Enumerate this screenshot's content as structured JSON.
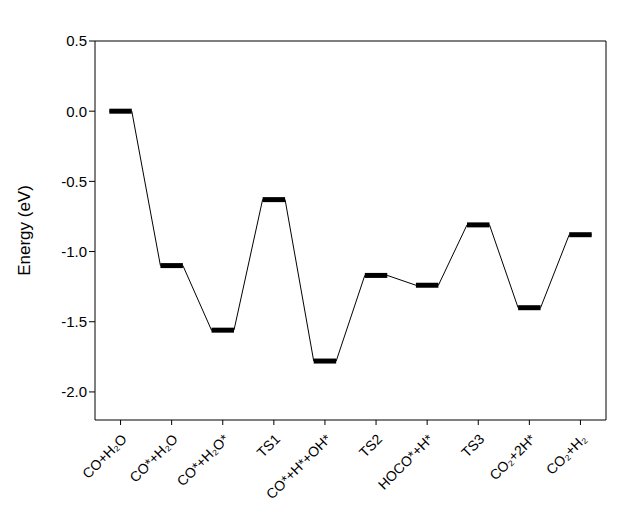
{
  "chart_data": {
    "type": "energy_profile",
    "y_label": "Energy (eV)",
    "categories": [
      "CO+H₂O",
      "CO*+H₂O",
      "CO*+H₂O*",
      "TS1",
      "CO*+H*+OH*",
      "TS2",
      "HOCO*+H*",
      "TS3",
      "CO₂+2H*",
      "CO₂+H₂"
    ],
    "values": [
      0.0,
      -1.1,
      -1.56,
      -0.63,
      -1.78,
      -1.17,
      -1.24,
      -0.81,
      -1.4,
      -0.88
    ],
    "color": "#000000",
    "ylim": [
      -2.2,
      0.5
    ],
    "yticks": [
      {
        "value": -2,
        "label": "-2.0"
      },
      {
        "value": -1.5,
        "label": "-1.5"
      },
      {
        "value": -1,
        "label": "-1.0"
      },
      {
        "value": -0.5,
        "label": "-0.5"
      },
      {
        "value": 0,
        "label": "0.0"
      },
      {
        "value": 0.5,
        "label": "0.5"
      }
    ],
    "grid": false
  }
}
